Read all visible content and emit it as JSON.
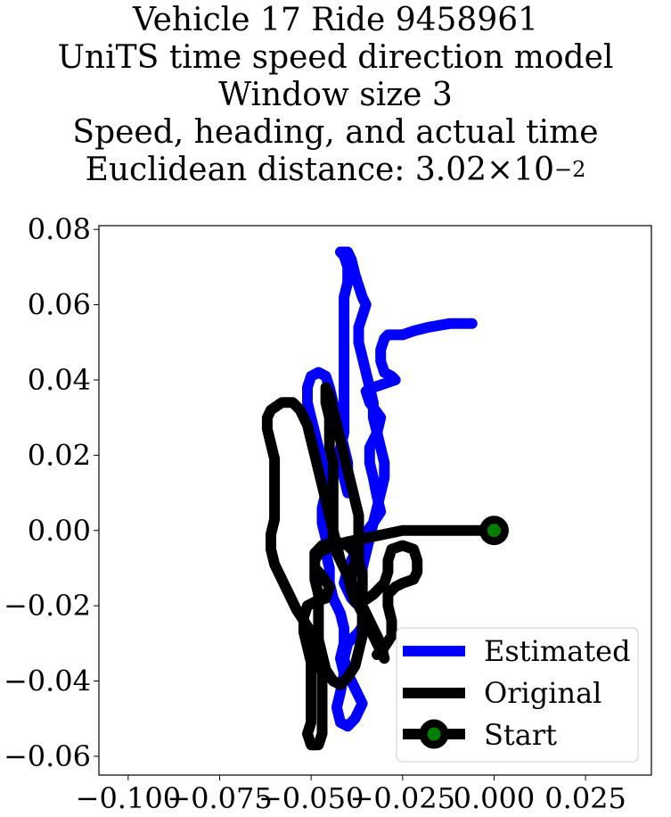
{
  "chart_data": {
    "type": "line",
    "title_lines": [
      "Vehicle 17 Ride 9458961",
      "UniTS time speed direction model",
      "Window size 3",
      "Speed, heading, and actual time"
    ],
    "distance_label": "Euclidean distance: 3.02",
    "distance_times": "×",
    "distance_base": "10",
    "distance_exp": "−2",
    "xlim": [
      -0.108,
      0.043
    ],
    "ylim": [
      -0.065,
      0.081
    ],
    "xticks": [
      {
        "v": -0.1,
        "label": "−0.100"
      },
      {
        "v": -0.075,
        "label": "−0.075"
      },
      {
        "v": -0.05,
        "label": "−0.050"
      },
      {
        "v": -0.025,
        "label": "−0.025"
      },
      {
        "v": 0.0,
        "label": "0.000"
      },
      {
        "v": 0.025,
        "label": "0.025"
      }
    ],
    "yticks": [
      {
        "v": 0.08,
        "label": "0.08"
      },
      {
        "v": 0.06,
        "label": "0.06"
      },
      {
        "v": 0.04,
        "label": "0.04"
      },
      {
        "v": 0.02,
        "label": "0.02"
      },
      {
        "v": 0.0,
        "label": "0.00"
      },
      {
        "v": -0.02,
        "label": "−0.02"
      },
      {
        "v": -0.04,
        "label": "−0.04"
      },
      {
        "v": -0.06,
        "label": "−0.06"
      }
    ],
    "legend_position": "lower right",
    "series": [
      {
        "name": "Estimated",
        "color": "#0000ff",
        "points": [
          [
            -0.006,
            0.055
          ],
          [
            -0.012,
            0.055
          ],
          [
            -0.018,
            0.054
          ],
          [
            -0.022,
            0.053
          ],
          [
            -0.025,
            0.052
          ],
          [
            -0.029,
            0.052
          ],
          [
            -0.03,
            0.051
          ],
          [
            -0.031,
            0.048
          ],
          [
            -0.031,
            0.045
          ],
          [
            -0.03,
            0.042
          ],
          [
            -0.028,
            0.041
          ],
          [
            -0.027,
            0.04
          ],
          [
            -0.03,
            0.039
          ],
          [
            -0.033,
            0.038
          ],
          [
            -0.035,
            0.037
          ],
          [
            -0.034,
            0.034
          ],
          [
            -0.031,
            0.03
          ],
          [
            -0.032,
            0.026
          ],
          [
            -0.034,
            0.022
          ],
          [
            -0.034,
            0.018
          ],
          [
            -0.033,
            0.014
          ],
          [
            -0.032,
            0.009
          ],
          [
            -0.031,
            0.005
          ],
          [
            -0.033,
            0.002
          ],
          [
            -0.036,
            -0.002
          ],
          [
            -0.038,
            -0.006
          ],
          [
            -0.04,
            -0.01
          ],
          [
            -0.041,
            -0.014
          ],
          [
            -0.039,
            -0.018
          ],
          [
            -0.036,
            -0.021
          ],
          [
            -0.035,
            -0.024
          ],
          [
            -0.037,
            -0.027
          ],
          [
            -0.04,
            -0.03
          ],
          [
            -0.041,
            -0.034
          ],
          [
            -0.04,
            -0.038
          ],
          [
            -0.038,
            -0.042
          ],
          [
            -0.036,
            -0.046
          ],
          [
            -0.038,
            -0.05
          ],
          [
            -0.04,
            -0.052
          ],
          [
            -0.042,
            -0.051
          ],
          [
            -0.043,
            -0.047
          ],
          [
            -0.042,
            -0.043
          ],
          [
            -0.041,
            -0.038
          ],
          [
            -0.042,
            -0.034
          ],
          [
            -0.041,
            -0.03
          ],
          [
            -0.041,
            -0.026
          ],
          [
            -0.042,
            -0.022
          ],
          [
            -0.044,
            -0.018
          ],
          [
            -0.045,
            -0.014
          ],
          [
            -0.045,
            -0.01
          ],
          [
            -0.046,
            -0.006
          ],
          [
            -0.046,
            -0.002
          ],
          [
            -0.047,
            0.002
          ],
          [
            -0.047,
            0.006
          ],
          [
            -0.046,
            0.01
          ],
          [
            -0.046,
            0.014
          ],
          [
            -0.047,
            0.018
          ],
          [
            -0.048,
            0.022
          ],
          [
            -0.049,
            0.026
          ],
          [
            -0.05,
            0.03
          ],
          [
            -0.051,
            0.034
          ],
          [
            -0.051,
            0.038
          ],
          [
            -0.05,
            0.041
          ],
          [
            -0.048,
            0.042
          ],
          [
            -0.046,
            0.041
          ],
          [
            -0.045,
            0.038
          ],
          [
            -0.044,
            0.034
          ],
          [
            -0.043,
            0.03
          ],
          [
            -0.042,
            0.026
          ],
          [
            -0.041,
            0.022
          ],
          [
            -0.04,
            0.018
          ],
          [
            -0.04,
            0.014
          ],
          [
            -0.04,
            0.01
          ],
          [
            -0.041,
            0.014
          ],
          [
            -0.042,
            0.018
          ],
          [
            -0.042,
            0.022
          ],
          [
            -0.041,
            0.026
          ],
          [
            -0.041,
            0.03
          ],
          [
            -0.041,
            0.034
          ],
          [
            -0.041,
            0.038
          ],
          [
            -0.041,
            0.042
          ],
          [
            -0.041,
            0.046
          ],
          [
            -0.041,
            0.05
          ],
          [
            -0.041,
            0.054
          ],
          [
            -0.041,
            0.058
          ],
          [
            -0.041,
            0.062
          ],
          [
            -0.04,
            0.066
          ],
          [
            -0.04,
            0.07
          ],
          [
            -0.041,
            0.073
          ],
          [
            -0.042,
            0.074
          ],
          [
            -0.04,
            0.074
          ],
          [
            -0.039,
            0.072
          ],
          [
            -0.038,
            0.068
          ],
          [
            -0.037,
            0.065
          ],
          [
            -0.036,
            0.062
          ],
          [
            -0.035,
            0.06
          ],
          [
            -0.036,
            0.057
          ],
          [
            -0.037,
            0.054
          ],
          [
            -0.037,
            0.05
          ],
          [
            -0.036,
            0.046
          ],
          [
            -0.035,
            0.042
          ],
          [
            -0.034,
            0.038
          ],
          [
            -0.033,
            0.034
          ],
          [
            -0.033,
            0.03
          ],
          [
            -0.032,
            0.026
          ],
          [
            -0.031,
            0.022
          ],
          [
            -0.03,
            0.018
          ],
          [
            -0.03,
            0.014
          ],
          [
            -0.031,
            0.01
          ],
          [
            -0.032,
            0.006
          ],
          [
            -0.033,
            0.002
          ],
          [
            -0.034,
            -0.002
          ],
          [
            -0.035,
            -0.006
          ],
          [
            -0.036,
            -0.01
          ],
          [
            -0.036,
            -0.014
          ],
          [
            -0.036,
            -0.017
          ]
        ]
      },
      {
        "name": "Original",
        "color": "#000000",
        "points": [
          [
            0.0,
            0.0
          ],
          [
            -0.005,
            0.0
          ],
          [
            -0.01,
            0.0
          ],
          [
            -0.015,
            0.0
          ],
          [
            -0.02,
            0.0
          ],
          [
            -0.025,
            0.0
          ],
          [
            -0.03,
            -0.001
          ],
          [
            -0.035,
            -0.002
          ],
          [
            -0.04,
            -0.003
          ],
          [
            -0.044,
            -0.004
          ],
          [
            -0.048,
            -0.006
          ],
          [
            -0.049,
            -0.008
          ],
          [
            -0.049,
            -0.01
          ],
          [
            -0.047,
            -0.012
          ],
          [
            -0.045,
            -0.015
          ],
          [
            -0.046,
            -0.018
          ],
          [
            -0.049,
            -0.019
          ],
          [
            -0.051,
            -0.02
          ],
          [
            -0.052,
            -0.023
          ],
          [
            -0.052,
            -0.027
          ],
          [
            -0.051,
            -0.031
          ],
          [
            -0.05,
            -0.035
          ],
          [
            -0.05,
            -0.039
          ],
          [
            -0.05,
            -0.043
          ],
          [
            -0.05,
            -0.047
          ],
          [
            -0.05,
            -0.051
          ],
          [
            -0.051,
            -0.054
          ],
          [
            -0.05,
            -0.057
          ],
          [
            -0.048,
            -0.057
          ],
          [
            -0.047,
            -0.054
          ],
          [
            -0.047,
            -0.05
          ],
          [
            -0.047,
            -0.046
          ],
          [
            -0.047,
            -0.042
          ],
          [
            -0.047,
            -0.038
          ],
          [
            -0.048,
            -0.034
          ],
          [
            -0.049,
            -0.03
          ],
          [
            -0.05,
            -0.027
          ],
          [
            -0.052,
            -0.024
          ],
          [
            -0.054,
            -0.021
          ],
          [
            -0.056,
            -0.017
          ],
          [
            -0.058,
            -0.013
          ],
          [
            -0.06,
            -0.009
          ],
          [
            -0.061,
            -0.005
          ],
          [
            -0.061,
            -0.001
          ],
          [
            -0.06,
            0.003
          ],
          [
            -0.06,
            0.007
          ],
          [
            -0.06,
            0.011
          ],
          [
            -0.06,
            0.015
          ],
          [
            -0.06,
            0.019
          ],
          [
            -0.061,
            0.023
          ],
          [
            -0.062,
            0.027
          ],
          [
            -0.062,
            0.03
          ],
          [
            -0.061,
            0.032
          ],
          [
            -0.058,
            0.034
          ],
          [
            -0.055,
            0.034
          ],
          [
            -0.053,
            0.032
          ],
          [
            -0.051,
            0.028
          ],
          [
            -0.05,
            0.024
          ],
          [
            -0.049,
            0.02
          ],
          [
            -0.048,
            0.016
          ],
          [
            -0.047,
            0.012
          ],
          [
            -0.046,
            0.008
          ],
          [
            -0.045,
            0.004
          ],
          [
            -0.044,
            0.0
          ],
          [
            -0.043,
            -0.004
          ],
          [
            -0.042,
            -0.008
          ],
          [
            -0.04,
            -0.012
          ],
          [
            -0.039,
            -0.016
          ],
          [
            -0.037,
            -0.02
          ],
          [
            -0.035,
            -0.024
          ],
          [
            -0.033,
            -0.028
          ],
          [
            -0.031,
            -0.032
          ],
          [
            -0.03,
            -0.034
          ],
          [
            -0.031,
            -0.03
          ],
          [
            -0.033,
            -0.026
          ],
          [
            -0.035,
            -0.022
          ],
          [
            -0.037,
            -0.018
          ],
          [
            -0.039,
            -0.014
          ],
          [
            -0.041,
            -0.01
          ],
          [
            -0.043,
            -0.006
          ],
          [
            -0.044,
            -0.002
          ],
          [
            -0.044,
            0.002
          ],
          [
            -0.044,
            0.006
          ],
          [
            -0.044,
            0.01
          ],
          [
            -0.044,
            0.014
          ],
          [
            -0.044,
            0.018
          ],
          [
            -0.045,
            0.022
          ],
          [
            -0.045,
            0.026
          ],
          [
            -0.045,
            0.03
          ],
          [
            -0.046,
            0.034
          ],
          [
            -0.046,
            0.037
          ],
          [
            -0.046,
            0.038
          ],
          [
            -0.045,
            0.036
          ],
          [
            -0.044,
            0.032
          ],
          [
            -0.043,
            0.028
          ],
          [
            -0.042,
            0.024
          ],
          [
            -0.041,
            0.02
          ],
          [
            -0.04,
            0.016
          ],
          [
            -0.039,
            0.012
          ],
          [
            -0.038,
            0.008
          ],
          [
            -0.037,
            0.004
          ],
          [
            -0.037,
            0.0
          ],
          [
            -0.037,
            -0.004
          ],
          [
            -0.037,
            -0.008
          ],
          [
            -0.036,
            -0.012
          ],
          [
            -0.036,
            -0.016
          ],
          [
            -0.036,
            -0.02
          ],
          [
            -0.036,
            -0.024
          ],
          [
            -0.036,
            -0.028
          ],
          [
            -0.037,
            -0.032
          ],
          [
            -0.038,
            -0.036
          ],
          [
            -0.04,
            -0.039
          ],
          [
            -0.042,
            -0.041
          ],
          [
            -0.044,
            -0.04
          ],
          [
            -0.046,
            -0.037
          ],
          [
            -0.047,
            -0.033
          ],
          [
            -0.048,
            -0.029
          ],
          [
            -0.048,
            -0.025
          ],
          [
            -0.048,
            -0.021
          ],
          [
            -0.048,
            -0.017
          ],
          [
            -0.049,
            -0.013
          ],
          [
            -0.049,
            -0.009
          ],
          [
            -0.049,
            -0.006
          ],
          [
            -0.047,
            -0.004
          ],
          [
            -0.043,
            -0.003
          ],
          [
            -0.04,
            -0.004
          ],
          [
            -0.038,
            -0.006
          ],
          [
            -0.038,
            -0.009
          ],
          [
            -0.039,
            -0.012
          ],
          [
            -0.039,
            -0.016
          ],
          [
            -0.038,
            -0.019
          ],
          [
            -0.036,
            -0.019
          ],
          [
            -0.033,
            -0.017
          ],
          [
            -0.03,
            -0.014
          ],
          [
            -0.029,
            -0.011
          ],
          [
            -0.029,
            -0.008
          ],
          [
            -0.028,
            -0.005
          ],
          [
            -0.025,
            -0.004
          ],
          [
            -0.022,
            -0.005
          ],
          [
            -0.021,
            -0.008
          ],
          [
            -0.021,
            -0.011
          ],
          [
            -0.022,
            -0.013
          ],
          [
            -0.025,
            -0.014
          ],
          [
            -0.027,
            -0.015
          ],
          [
            -0.029,
            -0.017
          ],
          [
            -0.029,
            -0.02
          ],
          [
            -0.028,
            -0.024
          ],
          [
            -0.028,
            -0.028
          ],
          [
            -0.03,
            -0.031
          ],
          [
            -0.032,
            -0.033
          ]
        ]
      }
    ],
    "start_point": {
      "name": "Start",
      "x": 0.0,
      "y": 0.0,
      "marker_color": "#008000",
      "edge_color": "#000000"
    }
  }
}
